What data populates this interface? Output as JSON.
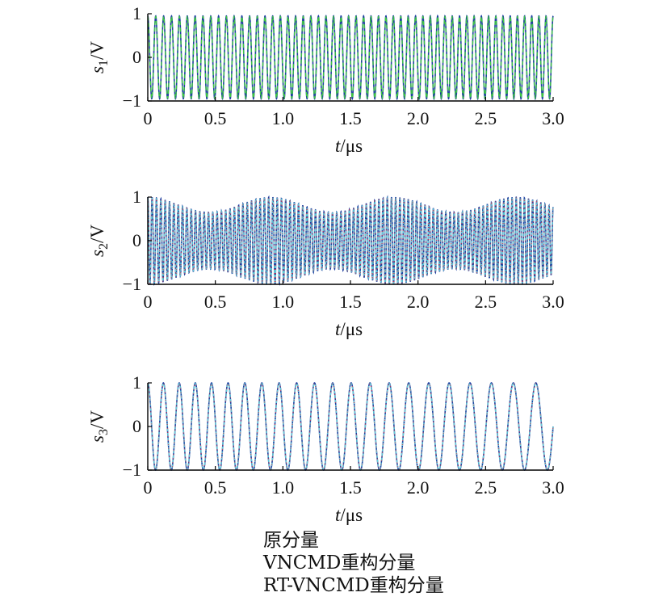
{
  "chart_data": [
    {
      "type": "line",
      "ylabel_symbol": "s",
      "ylabel_sub": "1",
      "ylabel_unit": "/V",
      "xlabel_symbol": "t",
      "xlabel_unit": "/μs",
      "xlim": [
        0,
        3.0
      ],
      "ylim": [
        -1,
        1
      ],
      "xticks": [
        "0",
        "0.5",
        "1.0",
        "1.5",
        "2.0",
        "2.5",
        "3.0"
      ],
      "yticks": [
        "−1",
        "0",
        "1"
      ],
      "series_note": "cosine with frequency rising from ~17 MHz to ~19 MHz",
      "signal": {
        "kind": "chirp",
        "f0_mhz": 17.0,
        "f1_mhz": 19.0,
        "amplitude": 0.95,
        "phase": 0
      }
    },
    {
      "type": "line",
      "ylabel_symbol": "s",
      "ylabel_sub": "2",
      "ylabel_unit": "/V",
      "xlabel_symbol": "t",
      "xlabel_unit": "/μs",
      "xlim": [
        0,
        3.0
      ],
      "ylim": [
        -1,
        1
      ],
      "xticks": [
        "0",
        "0.5",
        "1.0",
        "1.5",
        "2.0",
        "2.5",
        "3.0"
      ],
      "yticks": [
        "−1",
        "0",
        "1"
      ],
      "signal": {
        "kind": "am",
        "f0_mhz": 31.0,
        "f1_mhz": 33.0,
        "amplitude": 1.0,
        "envelope_depth": 0.35,
        "envelope_freq_mhz": 1.1,
        "phase": 0
      }
    },
    {
      "type": "line",
      "ylabel_symbol": "s",
      "ylabel_sub": "3",
      "ylabel_unit": "/V",
      "xlabel_symbol": "t",
      "xlabel_unit": "/μs",
      "xlim": [
        0,
        3.0
      ],
      "ylim": [
        -1,
        1
      ],
      "xticks": [
        "0",
        "0.5",
        "1.0",
        "1.5",
        "2.0",
        "2.5",
        "3.0"
      ],
      "yticks": [
        "−1",
        "0",
        "1"
      ],
      "signal": {
        "kind": "chirp",
        "f0_mhz": 8.7,
        "f1_mhz": 5.8,
        "amplitude": 1.0,
        "phase": 0
      }
    }
  ],
  "series": [
    {
      "name": "原分量",
      "color": "#1f3fa0",
      "style": "solid"
    },
    {
      "name": "VNCMD重构分量",
      "color": "#3ecb3e",
      "style": "dashed"
    },
    {
      "name": "RT-VNCMD重构分量",
      "color": "#d6334a",
      "style": "dotted"
    }
  ],
  "reconstruction_color_s2_s3": "#5fd0d8"
}
